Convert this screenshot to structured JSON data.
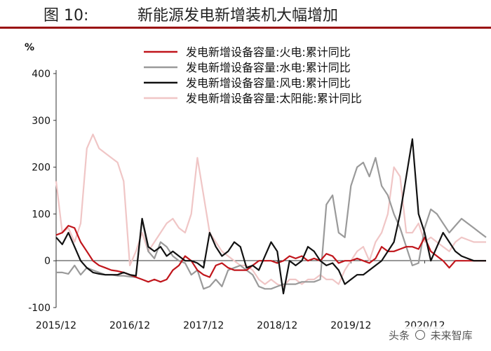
{
  "header": {
    "figure_number": "图 10:",
    "title": "新能源发电新增装机大幅增加"
  },
  "chart_data": {
    "type": "line",
    "unit_label": "%",
    "ylim": [
      -100,
      400
    ],
    "yticks": [
      -100,
      0,
      100,
      200,
      300,
      400
    ],
    "x_tick_labels": [
      "2015/12",
      "2016/12",
      "2017/12",
      "2018/12",
      "2019/12",
      "2020/12"
    ],
    "x": [
      "2015/12",
      "2016/01",
      "2016/02",
      "2016/03",
      "2016/04",
      "2016/05",
      "2016/06",
      "2016/07",
      "2016/08",
      "2016/09",
      "2016/10",
      "2016/11",
      "2016/12",
      "2017/01",
      "2017/02",
      "2017/03",
      "2017/04",
      "2017/05",
      "2017/06",
      "2017/07",
      "2017/08",
      "2017/09",
      "2017/10",
      "2017/11",
      "2017/12",
      "2018/01",
      "2018/02",
      "2018/03",
      "2018/04",
      "2018/05",
      "2018/06",
      "2018/07",
      "2018/08",
      "2018/09",
      "2018/10",
      "2018/11",
      "2018/12",
      "2019/01",
      "2019/02",
      "2019/03",
      "2019/04",
      "2019/05",
      "2019/06",
      "2019/07",
      "2019/08",
      "2019/09",
      "2019/10",
      "2019/11",
      "2019/12",
      "2020/01",
      "2020/02",
      "2020/03",
      "2020/04",
      "2020/05",
      "2020/06",
      "2020/07",
      "2020/08",
      "2020/09",
      "2020/10",
      "2020/11",
      "2020/12",
      "2021/01",
      "2021/02",
      "2021/03",
      "2021/04",
      "2021/05",
      "2021/06",
      "2021/07",
      "2021/08",
      "2021/09",
      "2021/10"
    ],
    "legend_position": "top",
    "series": [
      {
        "name": "发电新增设备容量:火电:累计同比",
        "color": "#c0151b",
        "values": [
          55,
          60,
          75,
          70,
          40,
          20,
          0,
          -10,
          -15,
          -20,
          -22,
          -25,
          -30,
          -35,
          -40,
          -45,
          -40,
          -45,
          -40,
          -20,
          -10,
          10,
          0,
          -20,
          -30,
          -35,
          -10,
          -5,
          -15,
          -20,
          -20,
          -20,
          -10,
          0,
          0,
          0,
          -5,
          0,
          10,
          5,
          10,
          0,
          5,
          0,
          15,
          10,
          -5,
          0,
          0,
          5,
          0,
          -5,
          5,
          30,
          20,
          20,
          25,
          30,
          30,
          25,
          50,
          20,
          10,
          0,
          -15,
          0,
          0,
          0,
          0,
          0,
          0
        ]
      },
      {
        "name": "发电新增设备容量:水电:累计同比",
        "color": "#9a9a9a",
        "values": [
          -25,
          -25,
          -28,
          -10,
          -30,
          -15,
          -20,
          -25,
          -30,
          -30,
          -32,
          -32,
          -34,
          -35,
          90,
          20,
          5,
          40,
          30,
          10,
          0,
          -5,
          -30,
          -20,
          -60,
          -55,
          -40,
          -55,
          -20,
          -15,
          -10,
          -20,
          -30,
          -55,
          -60,
          -60,
          -55,
          -50,
          -50,
          -50,
          -45,
          -45,
          -45,
          -40,
          120,
          140,
          60,
          50,
          160,
          200,
          210,
          180,
          220,
          160,
          140,
          100,
          70,
          30,
          -10,
          -5,
          70,
          110,
          100,
          80,
          60,
          75,
          90,
          80,
          70,
          60,
          50
        ]
      },
      {
        "name": "发电新增设备容量:风电:累计同比",
        "color": "#111111",
        "values": [
          50,
          35,
          60,
          30,
          0,
          -15,
          -25,
          -28,
          -30,
          -30,
          -30,
          -25,
          -30,
          -32,
          90,
          30,
          20,
          30,
          10,
          20,
          10,
          0,
          0,
          -5,
          -15,
          60,
          30,
          10,
          20,
          40,
          30,
          -15,
          -10,
          -20,
          10,
          40,
          20,
          -70,
          0,
          -10,
          0,
          30,
          20,
          0,
          -10,
          -5,
          -20,
          -50,
          -40,
          -30,
          -30,
          -20,
          -10,
          0,
          20,
          40,
          100,
          180,
          260,
          100,
          60,
          0,
          30,
          60,
          40,
          20,
          10,
          5,
          0,
          0,
          0
        ]
      },
      {
        "name": "发电新增设备容量:太阳能:累计同比",
        "color": "#f0c6c6",
        "values": [
          170,
          60,
          70,
          40,
          80,
          240,
          270,
          240,
          230,
          220,
          210,
          170,
          -10,
          20,
          60,
          20,
          40,
          60,
          80,
          90,
          70,
          60,
          100,
          220,
          140,
          60,
          40,
          20,
          10,
          0,
          -10,
          -10,
          -20,
          -40,
          -50,
          -40,
          -50,
          -55,
          -40,
          -40,
          -50,
          -40,
          -40,
          -30,
          -40,
          -40,
          -50,
          -20,
          0,
          20,
          30,
          0,
          40,
          60,
          100,
          200,
          180,
          60,
          60,
          80,
          40,
          50,
          40,
          30,
          20,
          40,
          50,
          45,
          40,
          40,
          40
        ]
      }
    ]
  },
  "watermark": {
    "prefix": "头条",
    "name": "未来智库"
  }
}
